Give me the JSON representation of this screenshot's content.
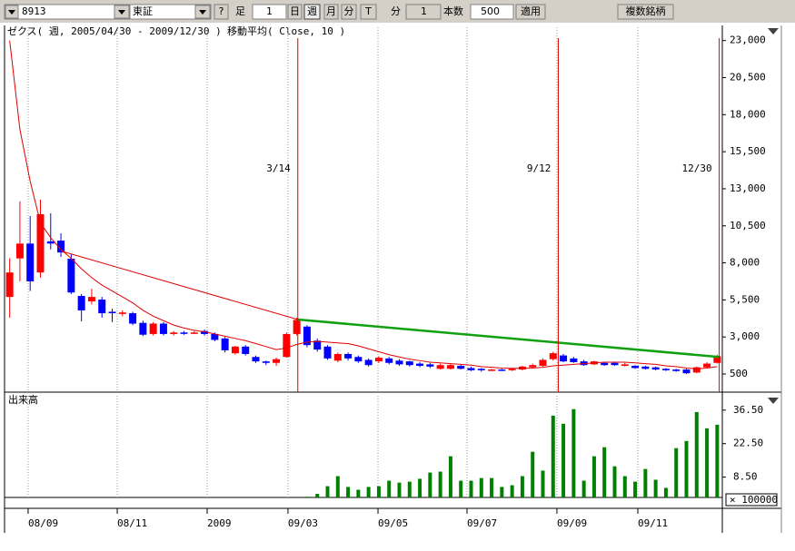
{
  "toolbar": {
    "symbol": "8913",
    "market": "東証",
    "help": "?",
    "bar_label": "足",
    "bar_count": "1",
    "day": "日",
    "week": "週",
    "month": "月",
    "minute": "分",
    "tick": "T",
    "minute_label": "分",
    "minute_count": "1",
    "count_label": "本数",
    "count": "500",
    "apply": "適用",
    "multi": "複数銘柄"
  },
  "chart_data": {
    "type": "candlestick",
    "title": "ゼクス( 週, 2005/04/30 - 2009/12/30 )",
    "indicator": "移動平均( Close, 10 )",
    "up_color": "#ff0000",
    "down_color": "#0000ff",
    "open": [
      5700,
      8300,
      9300,
      7350,
      9450,
      9500,
      8280,
      5770,
      5400,
      5520,
      4700,
      4550,
      4600,
      3950,
      3200,
      3900,
      3200,
      3300,
      3250,
      3400,
      3200,
      2900,
      1900,
      2350,
      1650,
      1350,
      1250,
      1650,
      3200,
      3700,
      2750,
      2350,
      1400,
      1850,
      1650,
      1450,
      1350,
      1550,
      1400,
      1350,
      1200,
      1150,
      850,
      850,
      1050,
      900,
      850,
      750,
      800,
      750,
      800,
      950,
      1050,
      1500,
      1750,
      1550,
      1350,
      1150,
      1250,
      1250,
      1050,
      1050,
      1000,
      950,
      850,
      800,
      800,
      600,
      950,
      1250
    ],
    "high": [
      8300,
      12150,
      11160,
      12260,
      11340,
      10000,
      8600,
      5900,
      6250,
      5700,
      4900,
      4800,
      4700,
      4100,
      4000,
      4000,
      3400,
      3400,
      3400,
      3500,
      3300,
      3000,
      2400,
      2450,
      1750,
      1400,
      1600,
      3300,
      4300,
      3800,
      2900,
      2450,
      1950,
      1950,
      1750,
      1550,
      1700,
      1650,
      1500,
      1400,
      1300,
      1250,
      1200,
      1200,
      1150,
      1000,
      900,
      850,
      850,
      900,
      1050,
      1200,
      1550,
      2000,
      1850,
      1650,
      1450,
      1400,
      1300,
      1300,
      1250,
      1100,
      1050,
      1000,
      900,
      850,
      850,
      1000,
      1300,
      1800
    ],
    "low": [
      4300,
      6750,
      6100,
      7000,
      8900,
      8400,
      5900,
      4050,
      5200,
      4300,
      4000,
      4400,
      3800,
      3050,
      3100,
      3100,
      3100,
      3150,
      3200,
      3100,
      2700,
      1950,
      1800,
      1750,
      1250,
      1100,
      1050,
      1600,
      3100,
      2300,
      2000,
      1450,
      1300,
      1400,
      1250,
      1000,
      1250,
      1150,
      1050,
      1000,
      950,
      900,
      800,
      800,
      800,
      700,
      650,
      700,
      700,
      700,
      750,
      900,
      1000,
      1400,
      1300,
      1250,
      1050,
      1100,
      1050,
      1050,
      1000,
      850,
      800,
      750,
      700,
      650,
      500,
      550,
      900,
      1200
    ],
    "close": [
      7350,
      9300,
      6750,
      11280,
      9300,
      8700,
      6000,
      4790,
      5700,
      4600,
      4600,
      4650,
      3900,
      3150,
      3900,
      3200,
      3300,
      3250,
      3300,
      3200,
      2800,
      2100,
      2350,
      1850,
      1350,
      1250,
      1500,
      3200,
      4150,
      2450,
      2150,
      1550,
      1850,
      1550,
      1350,
      1100,
      1600,
      1250,
      1150,
      1100,
      1050,
      1000,
      1100,
      1100,
      850,
      750,
      750,
      800,
      780,
      850,
      1000,
      1100,
      1450,
      1900,
      1350,
      1300,
      1100,
      1350,
      1100,
      1100,
      1150,
      900,
      850,
      800,
      750,
      700,
      550,
      950,
      1200,
      1700
    ],
    "ma": {
      "color": "#e00000",
      "values": [
        23000,
        17000,
        13500,
        10700,
        9700,
        8900,
        8300,
        7600,
        7000,
        6500,
        6100,
        5700,
        5300,
        4800,
        4400,
        4100,
        3800,
        3600,
        3450,
        3350,
        3200,
        3050,
        2900,
        2750,
        2550,
        2350,
        2150,
        2250,
        2500,
        2650,
        2700,
        2650,
        2600,
        2550,
        2400,
        2200,
        2000,
        1800,
        1650,
        1500,
        1400,
        1300,
        1250,
        1200,
        1150,
        1100,
        1000,
        950,
        900,
        880,
        880,
        900,
        950,
        1050,
        1100,
        1150,
        1200,
        1250,
        1300,
        1300,
        1300,
        1250,
        1200,
        1150,
        1050,
        1000,
        900,
        850,
        900,
        1000
      ]
    },
    "trendlines": [
      {
        "color": "#e00000",
        "points": [
          [
            5,
            8800
          ],
          [
            28.1,
            4176
          ]
        ]
      },
      {
        "color": "#10a010",
        "points": [
          [
            28.1,
            4176
          ],
          [
            69.2,
            1650
          ]
        ]
      }
    ],
    "events": [
      {
        "x": 28.1,
        "label": "3/14"
      },
      {
        "x": 53.5,
        "label": "9/12"
      },
      {
        "x": 69.2,
        "label": "12/30"
      }
    ],
    "xlim": [
      -0.5,
      69.5
    ],
    "xticks": [
      {
        "value": 1.8,
        "label": "08/09"
      },
      {
        "value": 10.49,
        "label": "08/11"
      },
      {
        "value": 19.26,
        "label": "2009"
      },
      {
        "value": 27.14,
        "label": "09/03"
      },
      {
        "value": 35.92,
        "label": "09/05"
      },
      {
        "value": 44.6,
        "label": "09/07"
      },
      {
        "value": 53.37,
        "label": "09/09"
      },
      {
        "value": 61.26,
        "label": "09/11"
      }
    ],
    "ylim": [
      -725,
      23900
    ],
    "yticks": [
      {
        "value": 23000,
        "label": "23,000"
      },
      {
        "value": 20500,
        "label": "20,500"
      },
      {
        "value": 18000,
        "label": "18,000"
      },
      {
        "value": 15500,
        "label": "15,500"
      },
      {
        "value": 13000,
        "label": "13,000"
      },
      {
        "value": 10500,
        "label": "10,500"
      },
      {
        "value": 8000,
        "label": "8,000"
      },
      {
        "value": 5500,
        "label": "5,500"
      },
      {
        "value": 3000,
        "label": "3,000"
      },
      500
    ],
    "volume": {
      "title": "出来高",
      "unit": "× 100000",
      "color": "#008000",
      "values": [
        null,
        null,
        null,
        null,
        null,
        null,
        null,
        null,
        null,
        null,
        null,
        null,
        null,
        null,
        null,
        null,
        null,
        null,
        null,
        null,
        null,
        null,
        null,
        null,
        null,
        null,
        null,
        null,
        null,
        0.3,
        1.5,
        4.7,
        8.9,
        4.4,
        3.2,
        4.4,
        4.7,
        7,
        6.2,
        6.6,
        7.8,
        10.4,
        10.8,
        17.2,
        7,
        7,
        8.1,
        8.1,
        4.4,
        5.1,
        8.9,
        19.1,
        11.2,
        34.2,
        30.8,
        36.9,
        7,
        17.2,
        21,
        13,
        8.9,
        6.6,
        11.9,
        7.4,
        4,
        20.6,
        23.6,
        35.7,
        28.9,
        30.4
      ],
      "ylim": [
        0,
        42.5
      ],
      "yticks": [
        {
          "value": 36.5,
          "label": "36.50"
        },
        {
          "value": 22.5,
          "label": "22.50"
        },
        {
          "value": 8.5,
          "label": "8.50"
        }
      ]
    }
  }
}
